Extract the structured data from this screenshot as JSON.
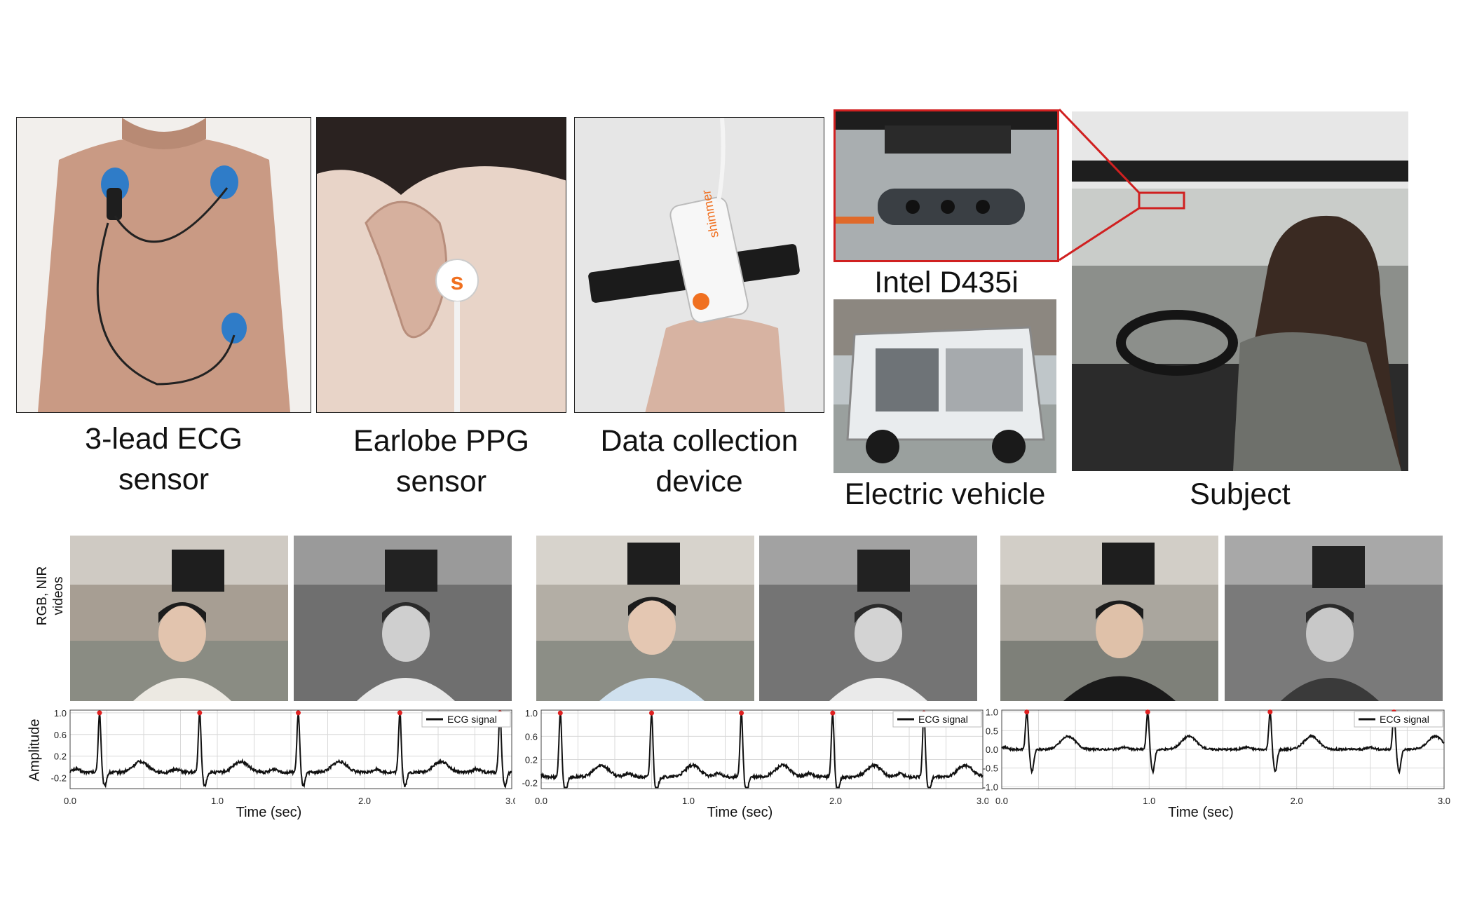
{
  "captions": {
    "ecg_sensor": [
      "3-lead ECG",
      "sensor"
    ],
    "ppg_sensor": [
      "Earlobe PPG",
      "sensor"
    ],
    "collection_device": [
      "Data collection",
      "device"
    ],
    "camera": "Intel D435i",
    "vehicle": "Electric vehicle",
    "subject": "Subject"
  },
  "device_label": "shimmer",
  "videos_label": [
    "RGB, NIR",
    "videos"
  ],
  "colors": {
    "ecg_line": "#111111",
    "r_peak": "#e02020",
    "grid": "#d8d8d8",
    "callout": "#d02020"
  },
  "chart_data": [
    {
      "type": "line",
      "xlabel": "Time (sec)",
      "ylabel": "Amplitude",
      "xlim": [
        0,
        3
      ],
      "ylim": [
        -0.4,
        1.05
      ],
      "xticks": [
        "0.0",
        "1.0",
        "2.0",
        "3.0"
      ],
      "yticks": [
        "1.0",
        "0.6",
        "0.2",
        "-0.2"
      ],
      "ytick_values": [
        1.0,
        0.6,
        0.2,
        -0.2
      ],
      "legend": "ECG signal",
      "r_peaks": [
        0.2,
        0.88,
        1.55,
        2.24,
        2.92
      ]
    },
    {
      "type": "line",
      "xlabel": "Time (sec)",
      "ylabel": "",
      "xlim": [
        0,
        3
      ],
      "ylim": [
        -0.3,
        1.05
      ],
      "xticks": [
        "0.0",
        "1.0",
        "2.0",
        "3.0"
      ],
      "yticks": [
        "1.0",
        "0.6",
        "0.2",
        "-0.2"
      ],
      "ytick_values": [
        1.0,
        0.6,
        0.2,
        -0.2
      ],
      "legend": "ECG signal",
      "r_peaks": [
        0.13,
        0.75,
        1.36,
        1.98,
        2.6
      ]
    },
    {
      "type": "line",
      "xlabel": "Time (sec)",
      "ylabel": "",
      "xlim": [
        0,
        3
      ],
      "ylim": [
        -1.05,
        1.05
      ],
      "xticks": [
        "0.0",
        "1.0",
        "2.0",
        "3.0"
      ],
      "yticks": [
        "1.0",
        "0.5",
        "0.0",
        "-0.5",
        "-1.0"
      ],
      "ytick_values": [
        1.0,
        0.5,
        0.0,
        -0.5,
        -1.0
      ],
      "legend": "ECG signal",
      "r_peaks": [
        0.17,
        0.99,
        1.82,
        2.66
      ]
    }
  ]
}
